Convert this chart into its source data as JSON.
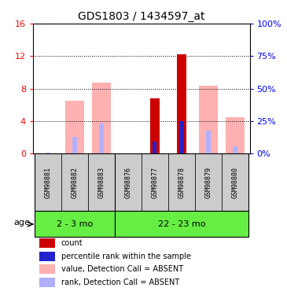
{
  "title": "GDS1803 / 1434597_at",
  "samples": [
    "GSM98881",
    "GSM98882",
    "GSM98883",
    "GSM98876",
    "GSM98877",
    "GSM98878",
    "GSM98879",
    "GSM98880"
  ],
  "groups": [
    "2 - 3 mo",
    "22 - 23 mo"
  ],
  "group1_count": 3,
  "group2_count": 5,
  "ylim_left": [
    0,
    16
  ],
  "ylim_right": [
    0,
    100
  ],
  "yticks_left": [
    0,
    4,
    8,
    12,
    16
  ],
  "yticks_right": [
    0,
    25,
    50,
    75,
    100
  ],
  "ytick_labels_left": [
    "0",
    "4",
    "8",
    "12",
    "16"
  ],
  "ytick_labels_right": [
    "0%",
    "25%",
    "50%",
    "75%",
    "100%"
  ],
  "count_color": "#cc0000",
  "rank_color": "#2222cc",
  "absent_value_color": "#ffb0b0",
  "absent_rank_color": "#b0b0ff",
  "group_bg_color": "#66ee44",
  "sample_bg_color": "#cccccc",
  "bars": {
    "GSM98881": {
      "count": null,
      "rank": null,
      "absent_value": null,
      "absent_rank": 0.12
    },
    "GSM98882": {
      "count": null,
      "rank": null,
      "absent_value": 6.5,
      "absent_rank": 2.0
    },
    "GSM98883": {
      "count": null,
      "rank": null,
      "absent_value": 8.7,
      "absent_rank": 3.7
    },
    "GSM98876": {
      "count": null,
      "rank": null,
      "absent_value": null,
      "absent_rank": null
    },
    "GSM98877": {
      "count": 6.8,
      "rank": 1.5,
      "absent_value": null,
      "absent_rank": null
    },
    "GSM98878": {
      "count": 12.2,
      "rank": 4.0,
      "absent_value": null,
      "absent_rank": null
    },
    "GSM98879": {
      "count": null,
      "rank": null,
      "absent_value": 8.3,
      "absent_rank": 2.8
    },
    "GSM98880": {
      "count": null,
      "rank": null,
      "absent_value": 4.5,
      "absent_rank": 0.9
    }
  },
  "legend_items": [
    {
      "color": "#cc0000",
      "label": "count"
    },
    {
      "color": "#2222cc",
      "label": "percentile rank within the sample"
    },
    {
      "color": "#ffb0b0",
      "label": "value, Detection Call = ABSENT"
    },
    {
      "color": "#b0b0ff",
      "label": "rank, Detection Call = ABSENT"
    }
  ]
}
